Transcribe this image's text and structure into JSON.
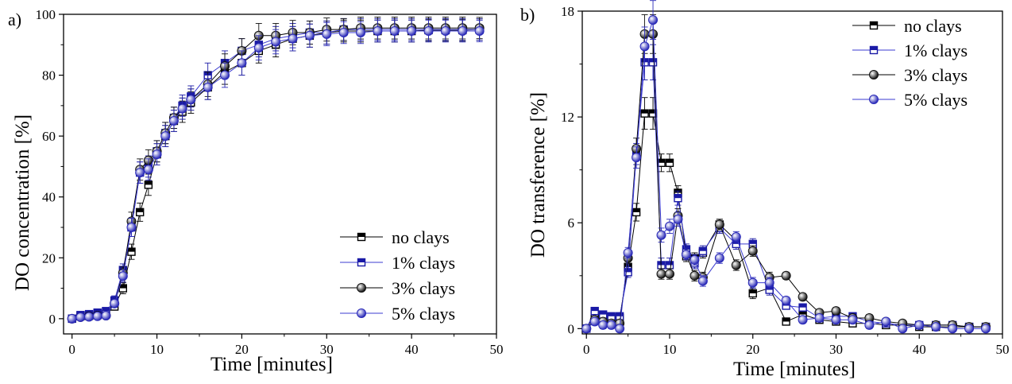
{
  "colors": {
    "axis": "#000000",
    "no_clays": "#000000",
    "clays_1": "#1a1aa6",
    "clays_3": "#111111",
    "clays_5": "#2a2ab8",
    "line_no": "#000000",
    "line_blue": "#3b3bd0"
  },
  "chart_data": [
    {
      "type": "line",
      "panel_label": "a)",
      "xlabel": "Time [minutes]",
      "ylabel": "DO concentration [%]",
      "xlim": [
        -1,
        50
      ],
      "ylim": [
        -5,
        100
      ],
      "xticks": [
        0,
        10,
        20,
        30,
        40,
        50
      ],
      "yticks": [
        0,
        20,
        40,
        60,
        80,
        100
      ],
      "legend_position": "bottom-right",
      "series": [
        {
          "name": "no clays",
          "marker": "square-half",
          "color_key": "no_clays",
          "x": [
            0,
            1,
            2,
            3,
            4,
            5,
            6,
            7,
            8,
            9,
            10,
            11,
            12,
            13,
            14,
            16,
            18,
            20,
            22,
            24,
            26,
            28,
            30,
            32,
            34,
            36,
            38,
            40,
            42,
            44,
            46,
            48
          ],
          "y": [
            0,
            0.8,
            0.9,
            1.2,
            1.5,
            4,
            10,
            22,
            35,
            44,
            54,
            60,
            65,
            68,
            71,
            76,
            81,
            84,
            88,
            90,
            92,
            93,
            94,
            94.5,
            94.5,
            94.5,
            94.5,
            94.5,
            94.8,
            94.8,
            94.8,
            95
          ],
          "err": [
            0.3,
            0.5,
            0.5,
            0.6,
            0.8,
            1.2,
            1.8,
            2.5,
            3,
            3.5,
            3.5,
            3.5,
            3.5,
            3.5,
            3.5,
            4,
            4,
            4,
            4,
            4,
            4,
            3.8,
            3.8,
            3.6,
            3.6,
            3.6,
            3.6,
            3.6,
            3.6,
            3.6,
            3.6,
            3.5
          ]
        },
        {
          "name": "1% clays",
          "marker": "square-half",
          "color_key": "clays_1",
          "x": [
            0,
            1,
            2,
            3,
            4,
            5,
            6,
            7,
            8,
            9,
            10,
            11,
            12,
            13,
            14,
            16,
            18,
            20,
            22,
            24,
            26,
            28,
            30,
            32,
            34,
            36,
            38,
            40,
            42,
            44,
            46,
            48
          ],
          "y": [
            0,
            1.2,
            1.5,
            2,
            2.5,
            6,
            16,
            30,
            48,
            50,
            55,
            61,
            66,
            70,
            73,
            80,
            84,
            88,
            90,
            92,
            93,
            94,
            94,
            95,
            95,
            95,
            95,
            95,
            95,
            95,
            95,
            95
          ],
          "err": [
            0.3,
            0.6,
            0.6,
            0.7,
            0.9,
            1.5,
            2,
            3,
            3.5,
            3.5,
            3.5,
            3.5,
            3.5,
            3.5,
            3.5,
            4,
            4,
            4,
            4,
            4,
            4,
            3.8,
            3.8,
            3.6,
            3.6,
            3.6,
            3.6,
            3.6,
            3.6,
            3.6,
            3.6,
            3.5
          ]
        },
        {
          "name": "3% clays",
          "marker": "circle",
          "color_key": "clays_3",
          "x": [
            0,
            1,
            2,
            3,
            4,
            5,
            6,
            7,
            8,
            9,
            10,
            11,
            12,
            13,
            14,
            16,
            18,
            20,
            22,
            24,
            26,
            28,
            30,
            32,
            34,
            36,
            38,
            40,
            42,
            44,
            46,
            48
          ],
          "y": [
            0,
            0.5,
            0.8,
            1,
            1,
            5,
            15,
            32,
            49,
            52,
            55,
            61,
            66,
            69,
            72,
            77,
            83,
            88,
            93,
            93,
            94,
            94,
            95,
            95,
            95.5,
            95.5,
            95.5,
            95.5,
            95.5,
            95.5,
            95.5,
            95.5
          ],
          "err": [
            0.3,
            0.5,
            0.5,
            0.6,
            0.8,
            1.2,
            2,
            3,
            3.5,
            3.5,
            3.5,
            3.5,
            3.5,
            3.5,
            3.5,
            4,
            4,
            4,
            4,
            4,
            4,
            3.8,
            3.8,
            3.6,
            3.6,
            3.6,
            3.6,
            3.6,
            3.6,
            3.6,
            3.6,
            3.5
          ]
        },
        {
          "name": "5% clays",
          "marker": "circle",
          "color_key": "clays_5",
          "x": [
            0,
            1,
            2,
            3,
            4,
            5,
            6,
            7,
            8,
            9,
            10,
            11,
            12,
            13,
            14,
            16,
            18,
            20,
            22,
            24,
            26,
            28,
            30,
            32,
            34,
            36,
            38,
            40,
            42,
            44,
            46,
            48
          ],
          "y": [
            0,
            0.5,
            0.6,
            0.8,
            1,
            5,
            14,
            30,
            48,
            49,
            54,
            60,
            65,
            69,
            72,
            76,
            80,
            84,
            89,
            91,
            92,
            93,
            93.5,
            94,
            94,
            94.5,
            94.5,
            94.5,
            94.5,
            94.5,
            94.5,
            94.5
          ],
          "err": [
            0.3,
            0.5,
            0.5,
            0.6,
            0.8,
            1.2,
            2,
            3,
            3.5,
            3.5,
            3.5,
            3.5,
            3.5,
            3.5,
            3.5,
            4,
            4,
            4,
            4,
            4,
            4,
            3.8,
            3.8,
            3.6,
            3.6,
            3.6,
            3.6,
            3.6,
            3.6,
            3.6,
            3.6,
            3.5
          ]
        }
      ]
    },
    {
      "type": "line",
      "panel_label": "b)",
      "xlabel": "Time [minutes]",
      "ylabel": "DO transference [%]",
      "xlim": [
        -0.5,
        50
      ],
      "ylim": [
        -0.3,
        18
      ],
      "xticks": [
        0,
        10,
        20,
        30,
        40,
        50
      ],
      "yticks": [
        0,
        6,
        12,
        18
      ],
      "legend_position": "top-right",
      "series": [
        {
          "name": "no clays",
          "marker": "square-half",
          "color_key": "no_clays",
          "x": [
            0,
            1,
            2,
            3,
            4,
            5,
            6,
            7,
            8,
            9,
            10,
            11,
            12,
            13,
            14,
            16,
            18,
            20,
            22,
            24,
            26,
            28,
            30,
            32,
            34,
            36,
            38,
            40,
            42,
            44,
            46,
            48
          ],
          "y": [
            0,
            0.8,
            0.7,
            0.6,
            0.6,
            3.5,
            6.6,
            12.2,
            12.2,
            9.4,
            9.4,
            7.7,
            4.1,
            4,
            4.3,
            5.9,
            5,
            2,
            2.3,
            0.4,
            0.8,
            0.5,
            0.4,
            0.3,
            0.3,
            0.2,
            0.2,
            0.1,
            0.1,
            0.1,
            0.1,
            0.1
          ],
          "err": [
            0.05,
            0.2,
            0.2,
            0.2,
            0.2,
            0.3,
            0.5,
            0.9,
            0.9,
            0.5,
            0.5,
            0.4,
            0.3,
            0.3,
            0.3,
            0.3,
            0.3,
            0.3,
            0.3,
            0.2,
            0.2,
            0.2,
            0.2,
            0.2,
            0.2,
            0.1,
            0.1,
            0.1,
            0.1,
            0.1,
            0.1,
            0.1
          ]
        },
        {
          "name": "1% clays",
          "marker": "square-half",
          "color_key": "clays_1",
          "x": [
            0,
            1,
            2,
            3,
            4,
            5,
            6,
            7,
            8,
            9,
            10,
            11,
            12,
            13,
            14,
            16,
            18,
            20,
            22,
            24,
            26,
            28,
            30,
            32,
            34,
            36,
            38,
            40,
            42,
            44,
            46,
            48
          ],
          "y": [
            0,
            1,
            0.8,
            0.7,
            0.7,
            3.2,
            9.9,
            15.1,
            15.1,
            3.6,
            3.6,
            7.4,
            4.5,
            3.7,
            4.4,
            5.7,
            4.8,
            4.8,
            2.2,
            1.3,
            1.2,
            0.6,
            0.7,
            0.7,
            0.4,
            0.3,
            0.2,
            0.2,
            0.2,
            0.2,
            0.1,
            0.1
          ],
          "err": [
            0.05,
            0.2,
            0.2,
            0.2,
            0.2,
            0.3,
            0.6,
            1,
            1,
            0.4,
            0.4,
            0.4,
            0.3,
            0.3,
            0.3,
            0.3,
            0.3,
            0.3,
            0.3,
            0.2,
            0.2,
            0.2,
            0.2,
            0.2,
            0.2,
            0.1,
            0.1,
            0.1,
            0.1,
            0.1,
            0.1,
            0.1
          ]
        },
        {
          "name": "3% clays",
          "marker": "circle",
          "color_key": "clays_3",
          "x": [
            0,
            1,
            2,
            3,
            4,
            5,
            6,
            7,
            8,
            9,
            10,
            11,
            12,
            13,
            14,
            16,
            18,
            20,
            22,
            24,
            26,
            28,
            30,
            32,
            34,
            36,
            38,
            40,
            42,
            44,
            46,
            48
          ],
          "y": [
            0,
            0.5,
            0.4,
            0.3,
            0.3,
            4,
            10.2,
            16.7,
            16.7,
            3.1,
            3.1,
            6.4,
            4.2,
            3,
            2.9,
            5.9,
            3.6,
            4.4,
            2.9,
            3.0,
            1.8,
            0.9,
            1,
            0.6,
            0.6,
            0.4,
            0.3,
            0.2,
            0.2,
            0.2,
            0.1,
            0.1
          ],
          "err": [
            0.05,
            0.2,
            0.2,
            0.2,
            0.2,
            0.3,
            0.6,
            1.1,
            1.1,
            0.3,
            0.3,
            0.4,
            0.3,
            0.3,
            0.3,
            0.3,
            0.3,
            0.3,
            0.3,
            0.2,
            0.2,
            0.2,
            0.2,
            0.2,
            0.2,
            0.1,
            0.1,
            0.1,
            0.1,
            0.1,
            0.1,
            0.1
          ]
        },
        {
          "name": "5% clays",
          "marker": "circle",
          "color_key": "clays_5",
          "x": [
            0,
            1,
            2,
            3,
            4,
            5,
            6,
            7,
            8,
            9,
            10,
            11,
            12,
            13,
            14,
            16,
            18,
            20,
            22,
            24,
            26,
            28,
            30,
            32,
            34,
            36,
            38,
            40,
            42,
            44,
            46,
            48
          ],
          "y": [
            0,
            0.4,
            0.2,
            0.2,
            0,
            4.3,
            9.7,
            16,
            17.5,
            5.3,
            5.8,
            6.2,
            4.2,
            3.9,
            2.7,
            4,
            5.2,
            2.6,
            2.6,
            1.6,
            0.5,
            0.6,
            0.5,
            0.5,
            0.2,
            0.4,
            0,
            0.2,
            0.1,
            0,
            0,
            0
          ],
          "err": [
            0.05,
            0.2,
            0.2,
            0.2,
            0.2,
            0.3,
            0.6,
            1.1,
            1.1,
            0.4,
            0.4,
            0.4,
            0.3,
            0.3,
            0.3,
            0.3,
            0.3,
            0.3,
            0.3,
            0.2,
            0.2,
            0.2,
            0.2,
            0.2,
            0.2,
            0.1,
            0.1,
            0.1,
            0.1,
            0.1,
            0.1,
            0.1
          ]
        }
      ]
    }
  ]
}
